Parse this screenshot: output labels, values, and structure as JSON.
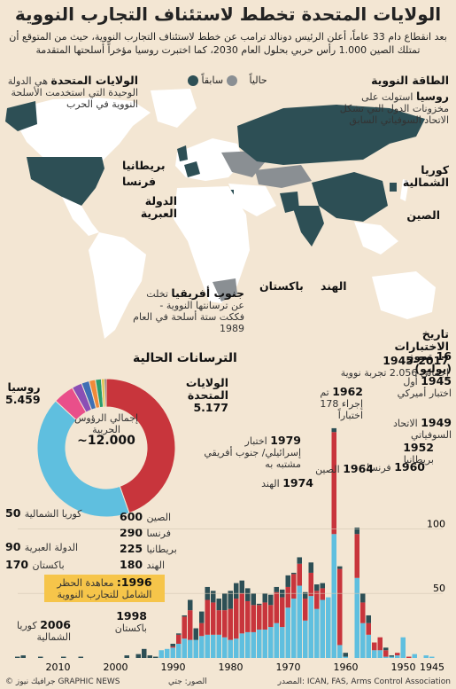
{
  "title": "الولايات المتحدة تخطط لاستئناف التجارب النووية",
  "subtitle": "بعد انقطاع دام 33 عاماً، أعلن الرئيس دونالد ترامب عن خطط لاستئناف التجارب النووية، حيث من المتوقع أن تمتلك الصين 1.000 رأس حربي بحلول العام 2030، كما اختبرت روسيا مؤخراً أسلحتها المتقدمة",
  "legend": {
    "current": "حالياً",
    "former": "سابقاً"
  },
  "colors": {
    "current": "#2d4f55",
    "former": "#8a8f93",
    "land": "#ffffff",
    "tests_bar": "#c8353c",
    "tests_bar_alt": "#5fbfdf",
    "sea": "#f3e6d3"
  },
  "map_labels": {
    "nuclear_power": "الطاقة النووية",
    "russia_title": "روسيا",
    "russia_text": "استولت على مخزونات الدول التي تشكل الاتحاد السوفياتي السابق",
    "usa_title": "الولايات المتحدة",
    "usa_text": "هي الدولة الوحيدة التي استخدمت الأسلحة النووية في الحرب",
    "uk": "بريطانيا",
    "france": "فرنسا",
    "israel": "الدولة العبرية",
    "north_korea": "كوريا الشمالية",
    "china": "الصين",
    "pakistan": "باكستان",
    "india": "الهند",
    "south_africa_title": "جنوب أفريقيا",
    "south_africa_text": "تخلت عن ترسانتها النووية - فككت ستة أسلحة في العام 1989"
  },
  "donut": {
    "title": "الترسانات الحالية",
    "center_label": "إجمالي الرؤوس الحربية",
    "center_value": "12.000~",
    "russia_label": "روسيا",
    "russia_value": "5.459",
    "usa_label": "الولايات المتحدة",
    "usa_value": "5.177",
    "small": [
      {
        "label": "الصين",
        "value": "600"
      },
      {
        "label": "فرنسا",
        "value": "290"
      },
      {
        "label": "بريطانيا",
        "value": "225"
      },
      {
        "label": "الهند",
        "value": "180"
      },
      {
        "label": "باكستان",
        "value": "170"
      },
      {
        "label": "الدولة العبرية",
        "value": "90"
      },
      {
        "label": "كوريا الشمالية",
        "value": "50"
      }
    ]
  },
  "timeline": {
    "history_title": "تاريخ الاختبارات",
    "years_range": "1945-2017",
    "total": "إجمالي 2.056 تجربة نووية",
    "y_ticks": [
      "100",
      "50"
    ],
    "x_ticks": [
      "1945",
      "1950",
      "1960",
      "1970",
      "1980",
      "1990",
      "2000",
      "2010"
    ],
    "events": [
      {
        "year": "16 تموز (يوليو) 1945",
        "text": "أول اختبار أميركي"
      },
      {
        "year": "1949",
        "text": "الاتحاد السوفياتي"
      },
      {
        "year": "1952",
        "text": "بريطانيا"
      },
      {
        "year": "1960",
        "text": "فرنسا"
      },
      {
        "year": "1962",
        "text": "تم إجراء 178 اختباراً"
      },
      {
        "year": "1964",
        "text": "الصين"
      },
      {
        "year": "1974",
        "text": "الهند"
      },
      {
        "year": "1979",
        "text": "اختبار إسرائيلي/ جنوب أفريقي مشتبه به"
      },
      {
        "year": "1998",
        "text": "باكستان"
      },
      {
        "year": "2006",
        "text": "كوريا الشمالية"
      }
    ],
    "treaty_year": "1996:",
    "treaty_text": "معاهدة الحظر الشامل للتجارب النووية"
  },
  "chart_data": {
    "type": "bar",
    "title": "تاريخ الاختبارات",
    "x": [
      1945,
      1946,
      1947,
      1948,
      1949,
      1950,
      1951,
      1952,
      1953,
      1954,
      1955,
      1956,
      1957,
      1958,
      1959,
      1960,
      1961,
      1962,
      1963,
      1964,
      1965,
      1966,
      1967,
      1968,
      1969,
      1970,
      1971,
      1972,
      1973,
      1974,
      1975,
      1976,
      1977,
      1978,
      1979,
      1980,
      1981,
      1982,
      1983,
      1984,
      1985,
      1986,
      1987,
      1988,
      1989,
      1990,
      1991,
      1992,
      1993,
      1994,
      1995,
      1996,
      1997,
      1998,
      1999,
      2000,
      2001,
      2002,
      2003,
      2004,
      2005,
      2006,
      2007,
      2008,
      2009,
      2010,
      2011,
      2012,
      2013,
      2014,
      2015,
      2016,
      2017
    ],
    "series": [
      {
        "values": [
          1,
          2,
          0,
          3,
          0,
          16,
          2,
          1,
          1,
          6,
          6,
          18,
          27,
          62,
          0,
          1,
          10,
          96,
          47,
          45,
          38,
          48,
          29,
          56,
          46,
          39,
          24,
          27,
          24,
          22,
          22,
          20,
          20,
          19,
          15,
          14,
          16,
          18,
          18,
          18,
          17,
          14,
          14,
          15,
          11,
          8,
          7,
          6,
          0,
          0,
          0,
          0,
          0,
          0,
          0,
          0,
          0,
          0,
          0,
          0,
          0,
          0,
          0,
          0,
          0,
          0,
          0,
          0,
          0,
          0,
          0,
          0,
          0
        ]
      },
      {
        "values": [
          0,
          0,
          0,
          0,
          1,
          0,
          2,
          0,
          5,
          10,
          6,
          9,
          16,
          34,
          0,
          0,
          59,
          79,
          0,
          9,
          14,
          18,
          17,
          17,
          19,
          16,
          23,
          24,
          17,
          21,
          19,
          21,
          24,
          31,
          31,
          24,
          21,
          19,
          25,
          27,
          10,
          0,
          23,
          17,
          7,
          1,
          0,
          0,
          0,
          0,
          0,
          0,
          0,
          0,
          0,
          0,
          0,
          0,
          0,
          0,
          0,
          0,
          0,
          0,
          0,
          0,
          0,
          0,
          0,
          0,
          0,
          0,
          0
        ]
      },
      {
        "values": [
          0,
          0,
          0,
          0,
          0,
          0,
          0,
          1,
          2,
          0,
          0,
          6,
          7,
          5,
          0,
          3,
          2,
          3,
          0,
          4,
          5,
          8,
          5,
          5,
          1,
          9,
          6,
          4,
          8,
          7,
          1,
          9,
          10,
          10,
          12,
          14,
          13,
          9,
          9,
          10,
          9,
          9,
          8,
          1,
          1,
          2,
          0,
          0,
          1,
          2,
          7,
          3,
          0,
          2,
          0,
          0,
          0,
          0,
          0,
          0,
          0,
          1,
          0,
          0,
          1,
          0,
          0,
          0,
          1,
          0,
          0,
          2,
          1
        ]
      }
    ],
    "y_ticks": [
      50,
      100
    ],
    "ylim": [
      0,
      180
    ]
  }
}
